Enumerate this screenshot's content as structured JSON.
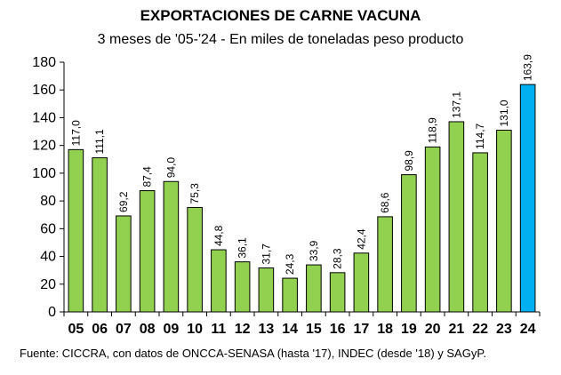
{
  "chart_data": {
    "type": "bar",
    "title": "EXPORTACIONES DE CARNE VACUNA",
    "subtitle": "3 meses de '05-'24 - En miles de toneladas peso producto",
    "categories": [
      "05",
      "06",
      "07",
      "08",
      "09",
      "10",
      "11",
      "12",
      "13",
      "14",
      "15",
      "16",
      "17",
      "18",
      "19",
      "20",
      "21",
      "22",
      "23",
      "24"
    ],
    "values": [
      117.0,
      111.1,
      69.2,
      87.4,
      94.0,
      75.3,
      44.8,
      36.1,
      31.7,
      24.3,
      33.9,
      28.3,
      42.4,
      68.6,
      98.9,
      118.9,
      137.1,
      114.7,
      131.0,
      163.9
    ],
    "value_labels": [
      "117,0",
      "111,1",
      "69,2",
      "87,4",
      "94,0",
      "75,3",
      "44,8",
      "36,1",
      "31,7",
      "24,3",
      "33,9",
      "28,3",
      "42,4",
      "68,6",
      "98,9",
      "118,9",
      "137,1",
      "114,7",
      "131,0",
      "163,9"
    ],
    "yticks": [
      "0",
      "20",
      "40",
      "60",
      "80",
      "100",
      "120",
      "140",
      "160",
      "180"
    ],
    "ylim": [
      0,
      180
    ],
    "grid": false,
    "legend": "none",
    "colors": {
      "bar": "#92d050",
      "highlight": "#00b0f0",
      "edge": "#000000"
    },
    "highlight_index": 19,
    "source": "Fuente: CICCRA, con datos de ONCCA-SENASA (hasta '17), INDEC (desde '18) y SAGyP."
  }
}
